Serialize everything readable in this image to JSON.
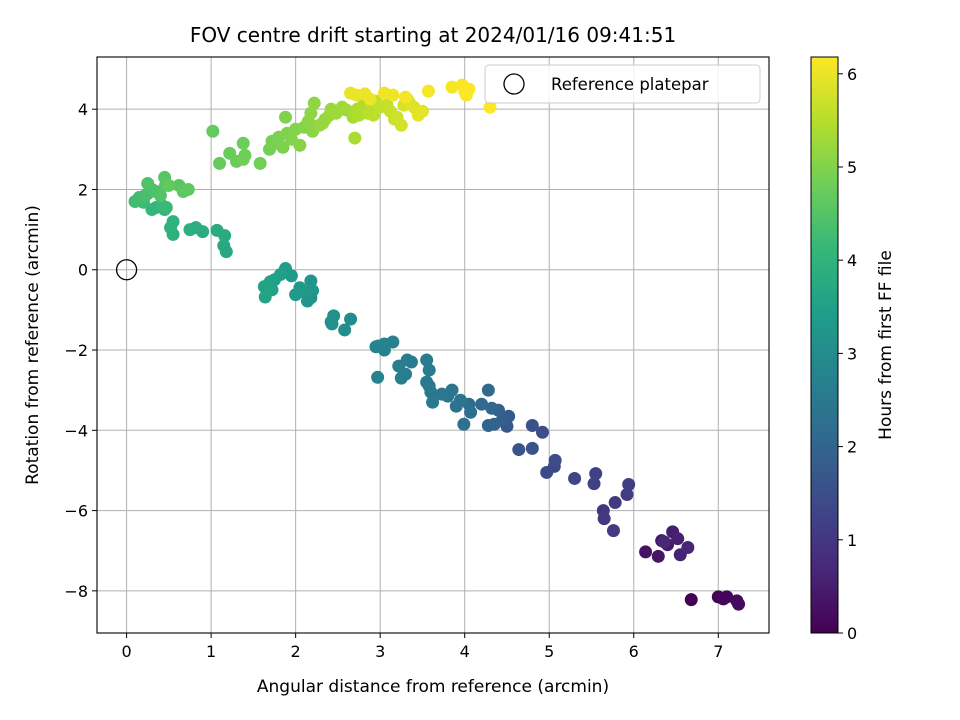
{
  "colors": {
    "grid": "#b0b0b0",
    "axis": "#000000",
    "legend_border": "#cccccc",
    "colormap": [
      "#440154",
      "#482878",
      "#3e4989",
      "#31688e",
      "#26828e",
      "#1f9e89",
      "#35b779",
      "#6ece58",
      "#b5de2b",
      "#fde725"
    ]
  },
  "chart_data": {
    "type": "scatter",
    "title": "FOV centre drift starting at 2024/01/16 09:41:51",
    "xlabel": "Angular distance from reference (arcmin)",
    "ylabel": "Rotation from reference (arcmin)",
    "xlim": [
      -0.35,
      7.6
    ],
    "ylim": [
      -9.05,
      5.3
    ],
    "xticks": [
      0,
      1,
      2,
      3,
      4,
      5,
      6,
      7
    ],
    "yticks": [
      -8,
      -6,
      -4,
      -2,
      0,
      2,
      4
    ],
    "grid": true,
    "legend": {
      "position": "upper right",
      "entries": [
        "Reference platepar"
      ]
    },
    "reference_point": {
      "name": "Reference platepar",
      "x": 0,
      "y": 0
    },
    "colorbar": {
      "label": "Hours from first FF file",
      "range": [
        0,
        6.18
      ],
      "ticks": [
        0,
        1,
        2,
        3,
        4,
        5,
        6
      ],
      "colormap": "viridis"
    },
    "points": [
      [
        6.68,
        -8.22,
        0.0
      ],
      [
        7.0,
        -8.15,
        0.03
      ],
      [
        7.1,
        -8.15,
        0.06
      ],
      [
        7.06,
        -8.2,
        0.09
      ],
      [
        7.22,
        -8.25,
        0.12
      ],
      [
        7.24,
        -8.33,
        0.15
      ],
      [
        6.14,
        -7.03,
        0.3
      ],
      [
        6.29,
        -7.14,
        0.35
      ],
      [
        6.33,
        -6.75,
        0.4
      ],
      [
        6.4,
        -6.85,
        0.45
      ],
      [
        6.46,
        -6.53,
        0.5
      ],
      [
        6.52,
        -6.7,
        0.55
      ],
      [
        6.55,
        -7.1,
        0.6
      ],
      [
        6.64,
        -6.92,
        0.65
      ],
      [
        6.36,
        -6.78,
        0.7
      ],
      [
        5.64,
        -6.0,
        1.0
      ],
      [
        5.65,
        -6.2,
        1.03
      ],
      [
        5.76,
        -6.5,
        1.06
      ],
      [
        5.78,
        -5.8,
        1.09
      ],
      [
        5.92,
        -5.6,
        1.12
      ],
      [
        5.94,
        -5.35,
        1.15
      ],
      [
        5.53,
        -5.33,
        1.18
      ],
      [
        5.55,
        -5.08,
        1.21
      ],
      [
        5.3,
        -5.2,
        1.3
      ],
      [
        5.06,
        -4.9,
        1.35
      ],
      [
        4.97,
        -5.05,
        1.4
      ],
      [
        5.07,
        -4.75,
        1.45
      ],
      [
        4.92,
        -4.05,
        1.5
      ],
      [
        4.8,
        -3.88,
        1.55
      ],
      [
        4.8,
        -4.45,
        1.6
      ],
      [
        4.64,
        -4.48,
        1.65
      ],
      [
        4.5,
        -3.9,
        1.7
      ],
      [
        4.52,
        -3.65,
        1.75
      ],
      [
        4.45,
        -3.72,
        1.85
      ],
      [
        4.4,
        -3.5,
        1.9
      ],
      [
        4.35,
        -3.85,
        1.95
      ],
      [
        4.28,
        -3.88,
        2.0
      ],
      [
        4.32,
        -3.45,
        2.05
      ],
      [
        4.2,
        -3.35,
        2.1
      ],
      [
        4.28,
        -3.0,
        2.15
      ],
      [
        4.05,
        -3.35,
        2.2
      ],
      [
        4.07,
        -3.55,
        2.25
      ],
      [
        3.99,
        -3.85,
        2.3
      ],
      [
        3.95,
        -3.25,
        2.35
      ],
      [
        3.9,
        -3.4,
        2.38
      ],
      [
        3.85,
        -3.0,
        2.4
      ],
      [
        3.8,
        -3.15,
        2.42
      ],
      [
        3.73,
        -3.1,
        2.45
      ],
      [
        3.6,
        -3.05,
        2.48
      ],
      [
        3.62,
        -3.3,
        2.5
      ],
      [
        3.58,
        -2.9,
        2.52
      ],
      [
        3.55,
        -2.8,
        2.54
      ],
      [
        3.58,
        -2.5,
        2.56
      ],
      [
        3.55,
        -2.25,
        2.58
      ],
      [
        3.37,
        -2.3,
        2.6
      ],
      [
        3.32,
        -2.25,
        2.62
      ],
      [
        3.3,
        -2.6,
        2.64
      ],
      [
        3.25,
        -2.7,
        2.66
      ],
      [
        3.22,
        -2.4,
        2.68
      ],
      [
        3.15,
        -1.8,
        2.7
      ],
      [
        3.05,
        -2.0,
        2.72
      ],
      [
        3.05,
        -1.85,
        2.74
      ],
      [
        2.98,
        -1.9,
        2.76
      ],
      [
        2.97,
        -2.68,
        2.78
      ],
      [
        2.95,
        -1.92,
        2.8
      ],
      [
        2.65,
        -1.23,
        3.0
      ],
      [
        2.58,
        -1.5,
        3.03
      ],
      [
        2.43,
        -1.35,
        3.06
      ],
      [
        2.45,
        -1.15,
        3.09
      ],
      [
        2.42,
        -1.3,
        3.12
      ],
      [
        2.18,
        -0.7,
        3.15
      ],
      [
        2.18,
        -0.28,
        3.18
      ],
      [
        2.14,
        -0.78,
        3.21
      ],
      [
        2.2,
        -0.52,
        3.24
      ],
      [
        2.1,
        -0.55,
        3.27
      ],
      [
        2.05,
        -0.45,
        3.3
      ],
      [
        2.0,
        -0.62,
        3.33
      ],
      [
        1.95,
        -0.15,
        3.36
      ],
      [
        1.88,
        -0.05,
        3.39
      ],
      [
        1.88,
        0.03,
        3.42
      ],
      [
        1.82,
        -0.12,
        3.45
      ],
      [
        1.75,
        -0.25,
        3.48
      ],
      [
        1.7,
        -0.3,
        3.51
      ],
      [
        1.72,
        -0.5,
        3.54
      ],
      [
        1.63,
        -0.42,
        3.57
      ],
      [
        1.64,
        -0.68,
        3.6
      ],
      [
        1.18,
        0.45,
        3.7
      ],
      [
        1.15,
        0.6,
        3.73
      ],
      [
        1.16,
        0.85,
        3.76
      ],
      [
        1.07,
        0.98,
        3.79
      ],
      [
        0.9,
        0.95,
        3.82
      ],
      [
        0.82,
        1.05,
        3.85
      ],
      [
        0.75,
        1.0,
        3.88
      ],
      [
        0.55,
        0.88,
        3.91
      ],
      [
        0.52,
        1.05,
        3.94
      ],
      [
        0.55,
        1.2,
        3.97
      ],
      [
        0.45,
        1.5,
        4.0
      ],
      [
        0.4,
        1.6,
        4.03
      ],
      [
        0.35,
        1.55,
        4.06
      ],
      [
        0.3,
        1.5,
        4.09
      ],
      [
        0.47,
        1.55,
        4.15
      ],
      [
        0.42,
        1.6,
        4.18
      ],
      [
        0.2,
        1.68,
        4.21
      ],
      [
        0.15,
        1.72,
        4.24
      ],
      [
        0.1,
        1.7,
        4.27
      ],
      [
        0.15,
        1.8,
        4.3
      ],
      [
        0.22,
        1.85,
        4.33
      ],
      [
        0.25,
        1.9,
        4.36
      ],
      [
        0.3,
        2.0,
        4.39
      ],
      [
        0.35,
        1.95,
        4.42
      ],
      [
        0.25,
        2.15,
        4.45
      ],
      [
        0.4,
        1.85,
        4.48
      ],
      [
        0.46,
        2.1,
        4.51
      ],
      [
        0.45,
        2.3,
        4.54
      ],
      [
        0.62,
        2.1,
        4.57
      ],
      [
        0.67,
        1.95,
        4.6
      ],
      [
        0.73,
        2.0,
        4.63
      ],
      [
        0.5,
        2.1,
        4.66
      ],
      [
        1.02,
        3.45,
        4.7
      ],
      [
        1.1,
        2.65,
        4.72
      ],
      [
        1.22,
        2.9,
        4.74
      ],
      [
        1.3,
        2.7,
        4.76
      ],
      [
        1.38,
        3.15,
        4.78
      ],
      [
        1.4,
        2.85,
        4.8
      ],
      [
        1.38,
        2.75,
        4.82
      ],
      [
        1.58,
        2.65,
        4.84
      ],
      [
        1.69,
        3.0,
        4.86
      ],
      [
        1.72,
        3.2,
        4.88
      ],
      [
        1.78,
        3.15,
        4.9
      ],
      [
        1.8,
        3.3,
        4.92
      ],
      [
        1.85,
        3.05,
        4.94
      ],
      [
        1.88,
        3.8,
        4.96
      ],
      [
        1.9,
        3.4,
        4.98
      ],
      [
        1.95,
        3.25,
        5.0
      ],
      [
        2.0,
        3.5,
        5.02
      ],
      [
        2.05,
        3.1,
        5.04
      ],
      [
        2.1,
        3.55,
        5.06
      ],
      [
        2.15,
        3.7,
        5.08
      ],
      [
        2.2,
        3.45,
        5.1
      ],
      [
        2.18,
        3.9,
        5.12
      ],
      [
        2.22,
        4.15,
        5.14
      ],
      [
        2.28,
        3.6,
        5.16
      ],
      [
        2.32,
        3.65,
        5.18
      ],
      [
        2.35,
        3.75,
        5.2
      ],
      [
        2.4,
        3.85,
        5.22
      ],
      [
        2.42,
        4.0,
        5.24
      ],
      [
        2.48,
        3.9,
        5.26
      ],
      [
        2.55,
        4.05,
        5.28
      ],
      [
        2.6,
        3.98,
        5.3
      ],
      [
        2.68,
        3.8,
        5.35
      ],
      [
        2.7,
        3.28,
        5.38
      ],
      [
        2.73,
        4.0,
        5.41
      ],
      [
        2.75,
        3.85,
        5.44
      ],
      [
        2.8,
        4.1,
        5.47
      ],
      [
        2.85,
        3.9,
        5.5
      ],
      [
        2.9,
        4.0,
        5.53
      ],
      [
        2.92,
        3.85,
        5.56
      ],
      [
        2.95,
        4.2,
        5.59
      ],
      [
        3.0,
        4.05,
        5.62
      ],
      [
        3.08,
        4.1,
        5.65
      ],
      [
        3.12,
        3.95,
        5.68
      ],
      [
        3.17,
        3.75,
        5.71
      ],
      [
        3.2,
        3.8,
        5.74
      ],
      [
        3.25,
        3.6,
        5.77
      ],
      [
        3.28,
        4.1,
        5.8
      ],
      [
        3.32,
        4.25,
        5.83
      ],
      [
        3.35,
        4.15,
        5.86
      ],
      [
        3.4,
        4.05,
        5.89
      ],
      [
        3.45,
        3.85,
        5.92
      ],
      [
        3.5,
        3.95,
        5.95
      ],
      [
        2.65,
        4.4,
        5.98
      ],
      [
        2.72,
        4.35,
        6.0
      ],
      [
        2.82,
        4.38,
        6.0
      ],
      [
        2.88,
        4.25,
        6.0
      ],
      [
        3.05,
        4.4,
        6.05
      ],
      [
        3.15,
        4.35,
        6.05
      ],
      [
        3.3,
        4.3,
        6.08
      ],
      [
        3.57,
        4.45,
        6.1
      ],
      [
        3.85,
        4.55,
        6.12
      ],
      [
        3.97,
        4.6,
        6.14
      ],
      [
        4.0,
        4.45,
        6.15
      ],
      [
        4.02,
        4.35,
        6.16
      ],
      [
        4.05,
        4.5,
        6.17
      ],
      [
        4.3,
        4.05,
        6.18
      ]
    ]
  }
}
